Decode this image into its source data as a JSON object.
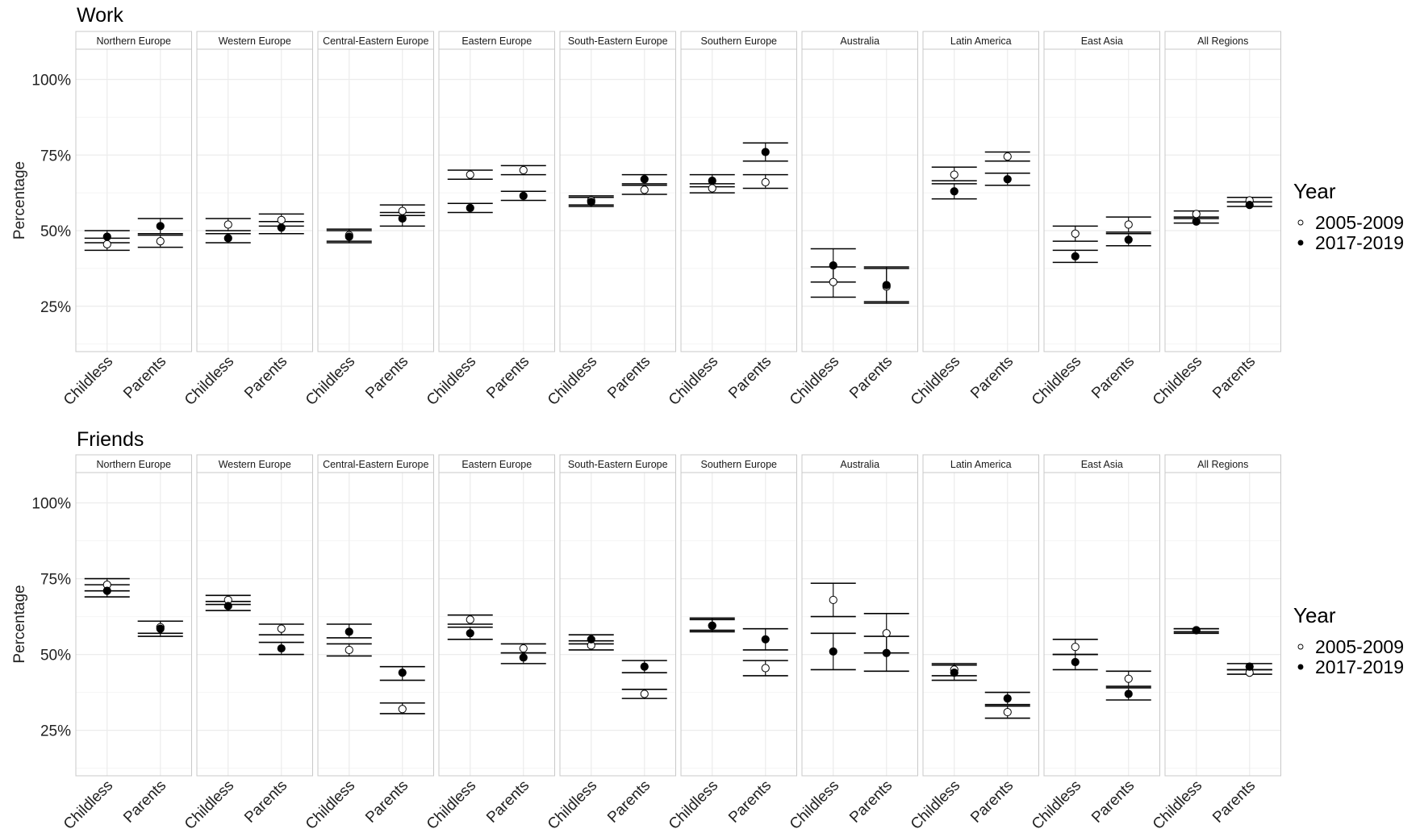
{
  "chart_data": {
    "type": "scatter",
    "facets": [
      "Northern Europe",
      "Western Europe",
      "Central-Eastern Europe",
      "Eastern Europe",
      "South-Eastern Europe",
      "Southern Europe",
      "Australia",
      "Latin America",
      "East Asia",
      "All Regions"
    ],
    "categories": [
      "Childless",
      "Parents"
    ],
    "ylabel": "Percentage",
    "yticks": [
      "25%",
      "50%",
      "75%",
      "100%"
    ],
    "ytick_values": [
      25,
      50,
      75,
      100
    ],
    "ylim": [
      10,
      110
    ],
    "legend": {
      "title": "Year",
      "placement": "right",
      "entries": [
        {
          "name": "2005-2009",
          "marker": "hollow circle"
        },
        {
          "name": "2017-2019",
          "marker": "filled circle"
        }
      ]
    },
    "colors": {
      "open_marker_fill": "#ffffff",
      "filled_marker": "#000000",
      "panel_border": "#c8c8c8",
      "grid": "#ececec"
    },
    "panels": [
      {
        "title": "Work",
        "data": [
          {
            "Childless": [
              [
                45.5,
                43.5,
                47.5
              ],
              [
                48,
                46,
                50
              ]
            ],
            "Parents": [
              [
                46.5,
                44.5,
                48.5
              ],
              [
                51.5,
                49,
                54
              ]
            ]
          },
          {
            "Childless": [
              [
                52,
                50,
                54
              ],
              [
                47.5,
                46,
                49
              ]
            ],
            "Parents": [
              [
                53.5,
                51.5,
                55.5
              ],
              [
                51,
                49,
                53
              ]
            ]
          },
          {
            "Childless": [
              [
                48.5,
                46.5,
                50.5
              ],
              [
                48,
                46,
                50
              ]
            ],
            "Parents": [
              [
                56.5,
                55,
                58.5
              ],
              [
                54,
                51.5,
                56
              ]
            ]
          },
          {
            "Childless": [
              [
                68.5,
                67,
                70
              ],
              [
                57.5,
                56,
                59
              ]
            ],
            "Parents": [
              [
                70,
                68.5,
                71.5
              ],
              [
                61.5,
                60,
                63
              ]
            ]
          },
          {
            "Childless": [
              [
                60,
                58.5,
                61.5
              ],
              [
                59.5,
                58,
                61
              ]
            ],
            "Parents": [
              [
                63.5,
                62,
                65
              ],
              [
                67,
                65.5,
                68.5
              ]
            ]
          },
          {
            "Childless": [
              [
                64,
                62.5,
                65.5
              ],
              [
                66.5,
                64.5,
                68.5
              ]
            ],
            "Parents": [
              [
                66,
                64,
                68.5
              ],
              [
                76,
                73,
                79
              ]
            ]
          },
          {
            "Childless": [
              [
                33,
                28,
                38
              ],
              [
                38.5,
                33,
                44
              ]
            ],
            "Parents": [
              [
                31.5,
                26,
                37.5
              ],
              [
                32,
                26.5,
                38
              ]
            ]
          },
          {
            "Childless": [
              [
                68.5,
                66.5,
                71
              ],
              [
                63,
                60.5,
                65.5
              ]
            ],
            "Parents": [
              [
                74.5,
                73,
                76
              ],
              [
                67,
                65,
                69
              ]
            ]
          },
          {
            "Childless": [
              [
                49,
                46.5,
                51.5
              ],
              [
                41.5,
                39.5,
                43.5
              ]
            ],
            "Parents": [
              [
                52,
                49.5,
                54.5
              ],
              [
                47,
                45,
                49
              ]
            ]
          },
          {
            "Childless": [
              [
                55.5,
                54.5,
                56.5
              ],
              [
                53,
                52.5,
                54
              ]
            ],
            "Parents": [
              [
                60,
                59.5,
                61
              ],
              [
                58.5,
                58,
                59.5
              ]
            ]
          }
        ]
      },
      {
        "title": "Friends",
        "data": [
          {
            "Childless": [
              [
                73,
                71,
                75
              ],
              [
                71,
                69,
                73
              ]
            ],
            "Parents": [
              [
                59,
                57,
                61
              ],
              [
                58.5,
                56,
                61
              ]
            ]
          },
          {
            "Childless": [
              [
                68,
                66.5,
                69.5
              ],
              [
                66,
                64.5,
                67.5
              ]
            ],
            "Parents": [
              [
                58.5,
                56.5,
                60
              ],
              [
                52,
                50,
                54
              ]
            ]
          },
          {
            "Childless": [
              [
                51.5,
                49.5,
                53.5
              ],
              [
                57.5,
                55.5,
                60
              ]
            ],
            "Parents": [
              [
                32,
                30.5,
                34
              ],
              [
                44,
                41.5,
                46
              ]
            ]
          },
          {
            "Childless": [
              [
                61.5,
                60,
                63
              ],
              [
                57,
                55,
                59
              ]
            ],
            "Parents": [
              [
                52,
                50.5,
                53.5
              ],
              [
                49,
                47,
                50.5
              ]
            ]
          },
          {
            "Childless": [
              [
                53,
                51.5,
                54.5
              ],
              [
                55,
                53.5,
                56.5
              ]
            ],
            "Parents": [
              [
                37,
                35.5,
                38.5
              ],
              [
                46,
                44,
                48
              ]
            ]
          },
          {
            "Childless": [
              [
                59.5,
                58,
                61.5
              ],
              [
                59.5,
                57.5,
                62
              ]
            ],
            "Parents": [
              [
                45.5,
                43,
                48
              ],
              [
                55,
                51.5,
                58.5
              ]
            ]
          },
          {
            "Childless": [
              [
                68,
                62.5,
                73.5
              ],
              [
                51,
                45,
                57
              ]
            ],
            "Parents": [
              [
                57,
                50.5,
                63.5
              ],
              [
                50.5,
                44.5,
                56
              ]
            ]
          },
          {
            "Childless": [
              [
                45,
                43,
                47
              ],
              [
                44,
                41.5,
                46.5
              ]
            ],
            "Parents": [
              [
                31,
                29,
                33
              ],
              [
                35.5,
                33.5,
                37.5
              ]
            ]
          },
          {
            "Childless": [
              [
                52.5,
                50,
                55
              ],
              [
                47.5,
                45,
                50
              ]
            ],
            "Parents": [
              [
                42,
                39.5,
                44.5
              ],
              [
                37,
                35,
                39
              ]
            ]
          },
          {
            "Childless": [
              [
                58,
                57.5,
                58.5
              ],
              [
                58,
                57,
                58.5
              ]
            ],
            "Parents": [
              [
                44,
                43.5,
                45
              ],
              [
                46,
                45,
                47
              ]
            ]
          }
        ]
      }
    ]
  }
}
